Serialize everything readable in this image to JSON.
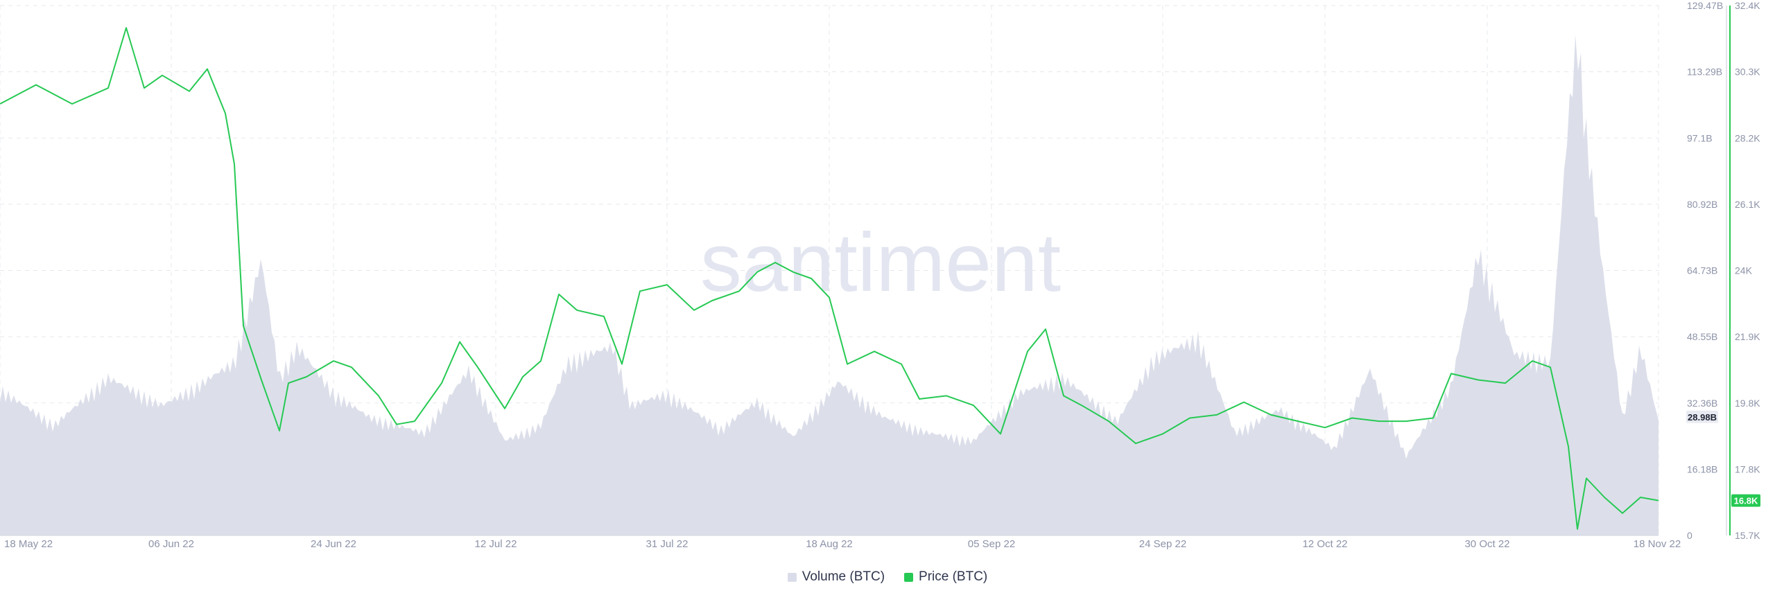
{
  "colors": {
    "volume": "#dadde9",
    "price": "#26c953",
    "grid": "#e6e8ee",
    "axis_text": "#8d93a8",
    "watermark": "#e3e6f0"
  },
  "watermark": "santiment",
  "legend": [
    {
      "label": "Volume (BTC)",
      "color": "#dadde9"
    },
    {
      "label": "Price (BTC)",
      "color": "#26c953"
    }
  ],
  "chart_data": {
    "type": "line",
    "x_ticks": [
      "18 May 22",
      "06 Jun 22",
      "24 Jun 22",
      "12 Jul 22",
      "31 Jul 22",
      "18 Aug 22",
      "05 Sep 22",
      "24 Sep 22",
      "12 Oct 22",
      "30 Oct 22",
      "18 Nov 22"
    ],
    "x_range": [
      "18 May 22",
      "18 Nov 22"
    ],
    "grid": true,
    "y_left": {
      "ticks": [
        "129.47B",
        "113.29B",
        "97.1B",
        "80.92B",
        "64.73B",
        "48.55B",
        "32.36B",
        "16.18B",
        "0"
      ],
      "range": [
        0,
        129.47
      ],
      "unit": "B",
      "current_label": "28.98B",
      "current_value": 28.98
    },
    "y_right": {
      "ticks": [
        "32.4K",
        "30.3K",
        "28.2K",
        "26.1K",
        "24K",
        "21.9K",
        "19.8K",
        "17.8K",
        "15.7K"
      ],
      "range": [
        15.7,
        32.4
      ],
      "unit": "K",
      "current_label": "16.8K",
      "current_value": 16.8
    },
    "series": [
      {
        "name": "Volume (BTC)",
        "kind": "area",
        "axis": "left",
        "x": [
          "18 May 22",
          "24 May 22",
          "30 May 22",
          "05 Jun 22",
          "09 Jun 22",
          "13 Jun 22",
          "16 Jun 22",
          "18 Jun 22",
          "20 Jun 22",
          "24 Jun 22",
          "28 Jun 22",
          "04 Jul 22",
          "09 Jul 22",
          "13 Jul 22",
          "17 Jul 22",
          "20 Jul 22",
          "25 Jul 22",
          "27 Jul 22",
          "31 Jul 22",
          "06 Aug 22",
          "10 Aug 22",
          "14 Aug 22",
          "19 Aug 22",
          "24 Aug 22",
          "29 Aug 22",
          "03 Sep 22",
          "08 Sep 22",
          "13 Sep 22",
          "19 Sep 22",
          "23 Sep 22",
          "28 Sep 22",
          "02 Oct 22",
          "07 Oct 22",
          "13 Oct 22",
          "17 Oct 22",
          "21 Oct 22",
          "26 Oct 22",
          "29 Oct 22",
          "02 Nov 22",
          "06 Nov 22",
          "08 Nov 22",
          "09 Nov 22",
          "10 Nov 22",
          "12 Nov 22",
          "14 Nov 22",
          "16 Nov 22",
          "18 Nov 22"
        ],
        "values": [
          37,
          28,
          40,
          33,
          38,
          44,
          70,
          40,
          48,
          36,
          30,
          26,
          42,
          24,
          28,
          44,
          48,
          33,
          36,
          27,
          34,
          25,
          39,
          30,
          26,
          24,
          36,
          40,
          29,
          45,
          50,
          26,
          32,
          22,
          42,
          20,
          38,
          72,
          46,
          44,
          106,
          128,
          102,
          64,
          30,
          48,
          29
        ]
      },
      {
        "name": "Price (BTC)",
        "kind": "line",
        "axis": "right",
        "x": [
          "18 May 22",
          "22 May 22",
          "26 May 22",
          "30 May 22",
          "01 Jun 22",
          "03 Jun 22",
          "05 Jun 22",
          "08 Jun 22",
          "10 Jun 22",
          "12 Jun 22",
          "13 Jun 22",
          "14 Jun 22",
          "16 Jun 22",
          "18 Jun 22",
          "19 Jun 22",
          "21 Jun 22",
          "24 Jun 22",
          "26 Jun 22",
          "29 Jun 22",
          "01 Jul 22",
          "03 Jul 22",
          "06 Jul 22",
          "08 Jul 22",
          "10 Jul 22",
          "13 Jul 22",
          "15 Jul 22",
          "17 Jul 22",
          "19 Jul 22",
          "21 Jul 22",
          "24 Jul 22",
          "26 Jul 22",
          "28 Jul 22",
          "31 Jul 22",
          "03 Aug 22",
          "05 Aug 22",
          "08 Aug 22",
          "10 Aug 22",
          "12 Aug 22",
          "14 Aug 22",
          "16 Aug 22",
          "18 Aug 22",
          "20 Aug 22",
          "23 Aug 22",
          "26 Aug 22",
          "28 Aug 22",
          "31 Aug 22",
          "03 Sep 22",
          "06 Sep 22",
          "09 Sep 22",
          "11 Sep 22",
          "13 Sep 22",
          "15 Sep 22",
          "18 Sep 22",
          "21 Sep 22",
          "24 Sep 22",
          "27 Sep 22",
          "30 Sep 22",
          "03 Oct 22",
          "06 Oct 22",
          "09 Oct 22",
          "12 Oct 22",
          "15 Oct 22",
          "18 Oct 22",
          "21 Oct 22",
          "24 Oct 22",
          "26 Oct 22",
          "29 Oct 22",
          "01 Nov 22",
          "04 Nov 22",
          "06 Nov 22",
          "08 Nov 22",
          "09 Nov 22",
          "10 Nov 22",
          "12 Nov 22",
          "14 Nov 22",
          "16 Nov 22",
          "18 Nov 22"
        ],
        "values": [
          29.3,
          29.9,
          29.3,
          29.8,
          31.7,
          29.8,
          30.2,
          29.7,
          30.4,
          29.0,
          27.4,
          22.3,
          20.6,
          19.0,
          20.5,
          20.7,
          21.2,
          21.0,
          20.1,
          19.2,
          19.3,
          20.5,
          21.8,
          21.0,
          19.7,
          20.7,
          21.2,
          23.3,
          22.8,
          22.6,
          21.1,
          23.4,
          23.6,
          22.8,
          23.1,
          23.4,
          24.0,
          24.3,
          24.0,
          23.8,
          23.2,
          21.1,
          21.5,
          21.1,
          20.0,
          20.1,
          19.8,
          18.9,
          21.5,
          22.2,
          20.1,
          19.8,
          19.3,
          18.6,
          18.9,
          19.4,
          19.5,
          19.9,
          19.5,
          19.3,
          19.1,
          19.4,
          19.3,
          19.3,
          19.4,
          20.8,
          20.6,
          20.5,
          21.2,
          21.0,
          18.5,
          15.9,
          17.5,
          16.9,
          16.4,
          16.9,
          16.8
        ]
      }
    ]
  }
}
